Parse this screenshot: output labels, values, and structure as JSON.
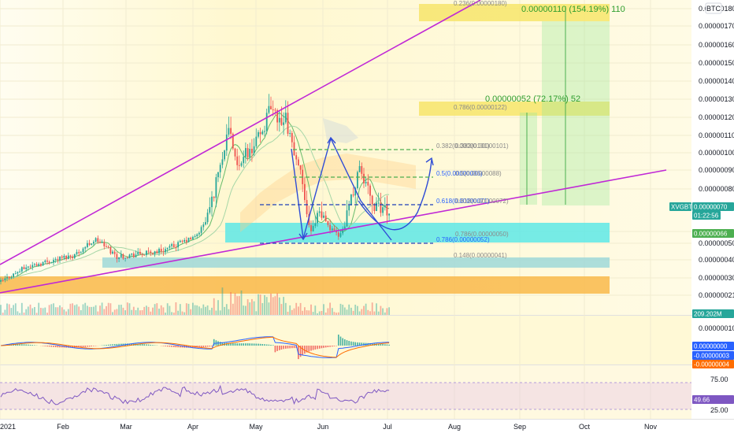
{
  "symbol": "XVGBTC",
  "currency": "BTC",
  "chart_data": [
    {
      "type": "candlestick",
      "title": "",
      "price_axis": {
        "ticks": [
          {
            "label": "0.00000180",
            "value": 180
          },
          {
            "label": "0.00000170",
            "value": 170
          },
          {
            "label": "0.00000160",
            "value": 160
          },
          {
            "label": "0.00000150",
            "value": 150
          },
          {
            "label": "0.00000140",
            "value": 140
          },
          {
            "label": "0.00000130",
            "value": 130
          },
          {
            "label": "0.00000120",
            "value": 120
          },
          {
            "label": "0.00000110",
            "value": 110
          },
          {
            "label": "0.00000100",
            "value": 100
          },
          {
            "label": "0.00000090",
            "value": 90
          },
          {
            "label": "0.00000080",
            "value": 80
          },
          {
            "label": "0.00000069",
            "value": 69
          },
          {
            "label": "0.00000060",
            "value": 60
          },
          {
            "label": "0.00000050",
            "value": 50
          },
          {
            "label": "0.00000040",
            "value": 40
          },
          {
            "label": "0.00000030",
            "value": 30
          },
          {
            "label": "0.00000021",
            "value": 21
          }
        ]
      },
      "time_axis": [
        "2021",
        "Feb",
        "Mar",
        "Apr",
        "May",
        "Jun",
        "Jul",
        "Aug",
        "Sep",
        "Oct",
        "Nov"
      ],
      "price_labels": [
        {
          "text": "XVGBTC",
          "kind": "symbol"
        },
        {
          "text": "0.00000070",
          "kind": "last"
        },
        {
          "text": "01:22:56",
          "kind": "countdown"
        },
        {
          "text": "0.00000069",
          "kind": "level"
        },
        {
          "text": "0.00000066",
          "kind": "level"
        },
        {
          "text": "209.202M",
          "kind": "volume"
        }
      ],
      "fib_levels": [
        {
          "label": "0.236(0.00000180)"
        },
        {
          "label": "0.786(0.00000122)"
        },
        {
          "label": "0.382(0.00000101)"
        },
        {
          "label": "0.382(0.00000101)"
        },
        {
          "label": "0.5(0.00000086)"
        },
        {
          "label": "0.5(0.00000088)"
        },
        {
          "label": "0.618(0.00000071)"
        },
        {
          "label": "0.618(0.00000072)"
        },
        {
          "label": "0.786(0.00000052)"
        },
        {
          "label": "0.786(0.00000050)"
        },
        {
          "label": "0.148(0.00000041)"
        }
      ],
      "targets": [
        {
          "label": "0.00000110 (154.19%) 110"
        },
        {
          "label": "0.00000052 (72.17%) 52"
        }
      ],
      "annotations": [
        "ascending channel",
        "cup and handle",
        "support zone",
        "projected path"
      ]
    },
    {
      "type": "macd",
      "ticks": [
        "0.00000010",
        "0.00000000",
        "-0.00000003",
        "-0.00000004"
      ]
    },
    {
      "type": "rsi",
      "ticks": [
        "75.00",
        "49.66",
        "25.00"
      ],
      "value": "49.66"
    }
  ],
  "colors": {
    "up": "#26a69a",
    "down": "#ef5350",
    "channel": "#c028d6",
    "projection": "#2f4cd6",
    "fib": "#2962ff",
    "target_zone": "#f7e56b",
    "support_zone": "#5ee8e6",
    "base_zone": "#f9b94a",
    "lower_zone": "#9fd8d8",
    "rsi": "#7e57c2",
    "macd": "#2962ff",
    "signal": "#ff6d00"
  }
}
